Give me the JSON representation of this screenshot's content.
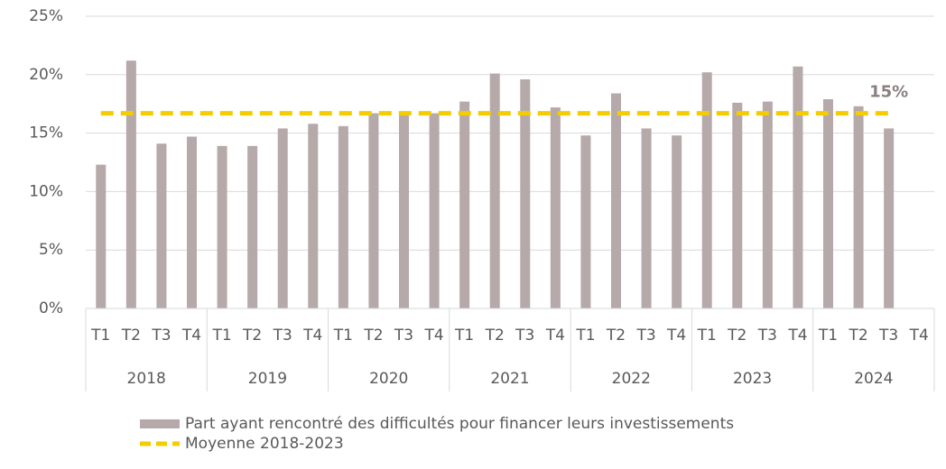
{
  "chart_data": {
    "type": "bar",
    "categories": [
      "T1",
      "T2",
      "T3",
      "T4",
      "T1",
      "T2",
      "T3",
      "T4",
      "T1",
      "T2",
      "T3",
      "T4",
      "T1",
      "T2",
      "T3",
      "T4",
      "T1",
      "T2",
      "T3",
      "T4",
      "T1",
      "T2",
      "T3",
      "T4",
      "T1",
      "T2",
      "T3",
      "T4"
    ],
    "category_groups": [
      "2018",
      "2019",
      "2020",
      "2021",
      "2022",
      "2023",
      "2024"
    ],
    "series": [
      {
        "name": "Part ayant rencontré des difficultés pour financer leurs investissements",
        "type": "bar",
        "color": "#b5a9a9",
        "values": [
          12.3,
          21.2,
          14.1,
          14.7,
          13.9,
          13.9,
          15.4,
          15.8,
          15.6,
          16.7,
          16.7,
          16.7,
          17.7,
          20.1,
          19.6,
          17.2,
          14.8,
          18.4,
          15.4,
          14.8,
          20.2,
          17.6,
          17.7,
          20.7,
          17.9,
          17.3,
          15.4,
          null
        ]
      },
      {
        "name": "Moyenne 2018-2023",
        "type": "line",
        "color": "#f5cc00",
        "values": [
          16.7,
          16.7,
          16.7,
          16.7,
          16.7,
          16.7,
          16.7,
          16.7,
          16.7,
          16.7,
          16.7,
          16.7,
          16.7,
          16.7,
          16.7,
          16.7,
          16.7,
          16.7,
          16.7,
          16.7,
          16.7,
          16.7,
          16.7,
          16.7,
          16.7,
          16.7,
          16.7,
          null
        ]
      }
    ],
    "annotation": "15%",
    "ylim": [
      0,
      25
    ],
    "yticks": [
      {
        "value": 0,
        "label": "0%"
      },
      {
        "value": 5,
        "label": "5%"
      },
      {
        "value": 10,
        "label": "10%"
      },
      {
        "value": 15,
        "label": "15%"
      },
      {
        "value": 20,
        "label": "20%"
      },
      {
        "value": 25,
        "label": "25%"
      }
    ],
    "grid": true,
    "legend": "bottom"
  }
}
